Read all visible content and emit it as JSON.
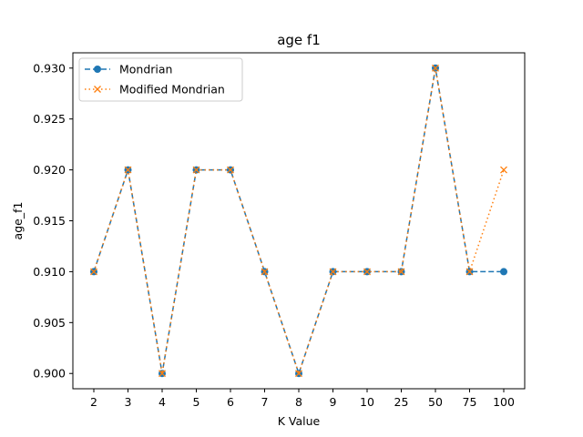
{
  "chart_data": {
    "type": "line",
    "title": "age f1",
    "xlabel": "K Value",
    "ylabel": "age_f1",
    "categories": [
      "2",
      "3",
      "4",
      "5",
      "6",
      "7",
      "8",
      "9",
      "10",
      "25",
      "50",
      "75",
      "100"
    ],
    "ylim": [
      0.8985,
      0.9315
    ],
    "yticks": [
      0.9,
      0.905,
      0.91,
      0.915,
      0.92,
      0.925,
      0.93
    ],
    "ytick_labels": [
      "0.900",
      "0.905",
      "0.910",
      "0.915",
      "0.920",
      "0.925",
      "0.930"
    ],
    "legend_position": "upper-left",
    "series": [
      {
        "name": "Mondrian",
        "color": "#1f77b4",
        "linestyle": "dashed",
        "marker": "circle",
        "values": [
          0.91,
          0.92,
          0.9,
          0.92,
          0.92,
          0.91,
          0.9,
          0.91,
          0.91,
          0.91,
          0.93,
          0.91,
          0.91
        ]
      },
      {
        "name": "Modified Mondrian",
        "color": "#ff7f0e",
        "linestyle": "dotted",
        "marker": "x",
        "values": [
          0.91,
          0.92,
          0.9,
          0.92,
          0.92,
          0.91,
          0.9,
          0.91,
          0.91,
          0.91,
          0.93,
          0.91,
          0.92
        ]
      }
    ]
  }
}
